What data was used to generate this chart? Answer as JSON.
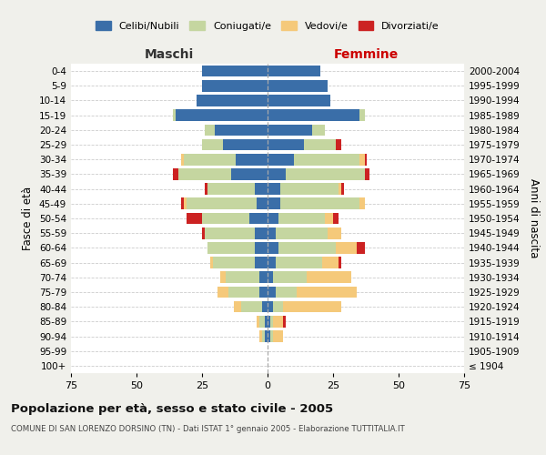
{
  "age_groups": [
    "100+",
    "95-99",
    "90-94",
    "85-89",
    "80-84",
    "75-79",
    "70-74",
    "65-69",
    "60-64",
    "55-59",
    "50-54",
    "45-49",
    "40-44",
    "35-39",
    "30-34",
    "25-29",
    "20-24",
    "15-19",
    "10-14",
    "5-9",
    "0-4"
  ],
  "birth_years": [
    "≤ 1904",
    "1905-1909",
    "1910-1914",
    "1915-1919",
    "1920-1924",
    "1925-1929",
    "1930-1934",
    "1935-1939",
    "1940-1944",
    "1945-1949",
    "1950-1954",
    "1955-1959",
    "1960-1964",
    "1965-1969",
    "1970-1974",
    "1975-1979",
    "1980-1984",
    "1985-1989",
    "1990-1994",
    "1995-1999",
    "2000-2004"
  ],
  "male_celibi": [
    0,
    0,
    1,
    1,
    2,
    3,
    3,
    5,
    5,
    5,
    7,
    4,
    5,
    14,
    12,
    17,
    20,
    35,
    27,
    25,
    25
  ],
  "male_coniugati": [
    0,
    0,
    1,
    2,
    8,
    12,
    13,
    16,
    18,
    19,
    18,
    27,
    18,
    20,
    20,
    8,
    4,
    1,
    0,
    0,
    0
  ],
  "male_vedovi": [
    0,
    0,
    1,
    1,
    3,
    4,
    2,
    1,
    0,
    0,
    0,
    1,
    0,
    0,
    1,
    0,
    0,
    0,
    0,
    0,
    0
  ],
  "male_divorziati": [
    0,
    0,
    0,
    0,
    0,
    0,
    0,
    0,
    0,
    1,
    6,
    1,
    1,
    2,
    0,
    0,
    0,
    0,
    0,
    0,
    0
  ],
  "female_celibi": [
    0,
    0,
    1,
    1,
    2,
    3,
    2,
    3,
    4,
    3,
    4,
    5,
    5,
    7,
    10,
    14,
    17,
    35,
    24,
    23,
    20
  ],
  "female_coniugati": [
    0,
    0,
    1,
    1,
    4,
    8,
    13,
    18,
    22,
    20,
    18,
    30,
    22,
    30,
    25,
    12,
    5,
    2,
    0,
    0,
    0
  ],
  "female_vedovi": [
    0,
    0,
    4,
    4,
    22,
    23,
    17,
    6,
    8,
    5,
    3,
    2,
    1,
    0,
    2,
    0,
    0,
    0,
    0,
    0,
    0
  ],
  "female_divorziati": [
    0,
    0,
    0,
    1,
    0,
    0,
    0,
    1,
    3,
    0,
    2,
    0,
    1,
    2,
    1,
    2,
    0,
    0,
    0,
    0,
    0
  ],
  "colors": {
    "celibi": "#3a6ea8",
    "coniugati": "#c5d6a0",
    "vedovi": "#f5c97a",
    "divorziati": "#cc2222"
  },
  "title_main": "Popolazione per età, sesso e stato civile - 2005",
  "title_sub": "COMUNE DI SAN LORENZO DORSINO (TN) - Dati ISTAT 1° gennaio 2005 - Elaborazione TUTTITALIA.IT",
  "xlabel_left": "Maschi",
  "xlabel_right": "Femmine",
  "ylabel_left": "Fasce di età",
  "ylabel_right": "Anni di nascita",
  "xlim": 75,
  "bg_color": "#f0f0eb",
  "plot_bg": "#ffffff"
}
